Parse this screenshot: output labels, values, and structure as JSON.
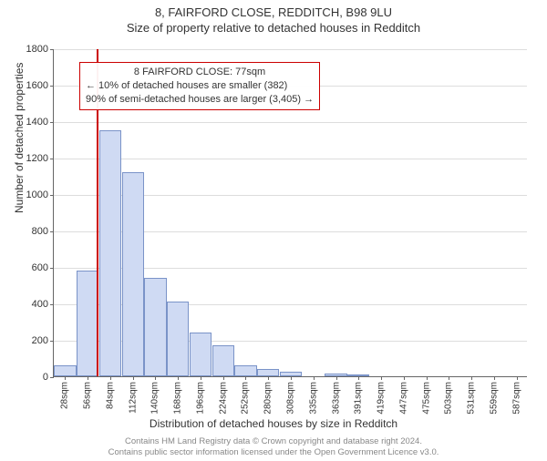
{
  "header": {
    "title": "8, FAIRFORD CLOSE, REDDITCH, B98 9LU",
    "subtitle": "Size of property relative to detached houses in Redditch"
  },
  "axes": {
    "ylabel": "Number of detached properties",
    "xlabel": "Distribution of detached houses by size in Redditch"
  },
  "chart": {
    "type": "histogram",
    "ylim_max": 1800,
    "ytick_step": 200,
    "bar_fill": "#cfdaf3",
    "bar_stroke": "#7a93c8",
    "background": "#ffffff",
    "grid_color": "#dddddd",
    "axis_color": "#666666",
    "reference_line": {
      "x_index": 1.9,
      "color": "#cc0000"
    },
    "categories": [
      "28sqm",
      "56sqm",
      "84sqm",
      "112sqm",
      "140sqm",
      "168sqm",
      "196sqm",
      "224sqm",
      "252sqm",
      "280sqm",
      "308sqm",
      "335sqm",
      "363sqm",
      "391sqm",
      "419sqm",
      "447sqm",
      "475sqm",
      "503sqm",
      "531sqm",
      "559sqm",
      "587sqm"
    ],
    "values": [
      60,
      580,
      1350,
      1120,
      540,
      410,
      240,
      170,
      60,
      40,
      25,
      0,
      15,
      10,
      0,
      0,
      0,
      0,
      0,
      0,
      0
    ]
  },
  "annotation": {
    "border_color": "#cc0000",
    "line1": "8 FAIRFORD CLOSE: 77sqm",
    "line2": "← 10% of detached houses are smaller (382)",
    "line3": "90% of semi-detached houses are larger (3,405) →"
  },
  "footer": {
    "line1": "Contains HM Land Registry data © Crown copyright and database right 2024.",
    "line2": "Contains public sector information licensed under the Open Government Licence v3.0."
  }
}
